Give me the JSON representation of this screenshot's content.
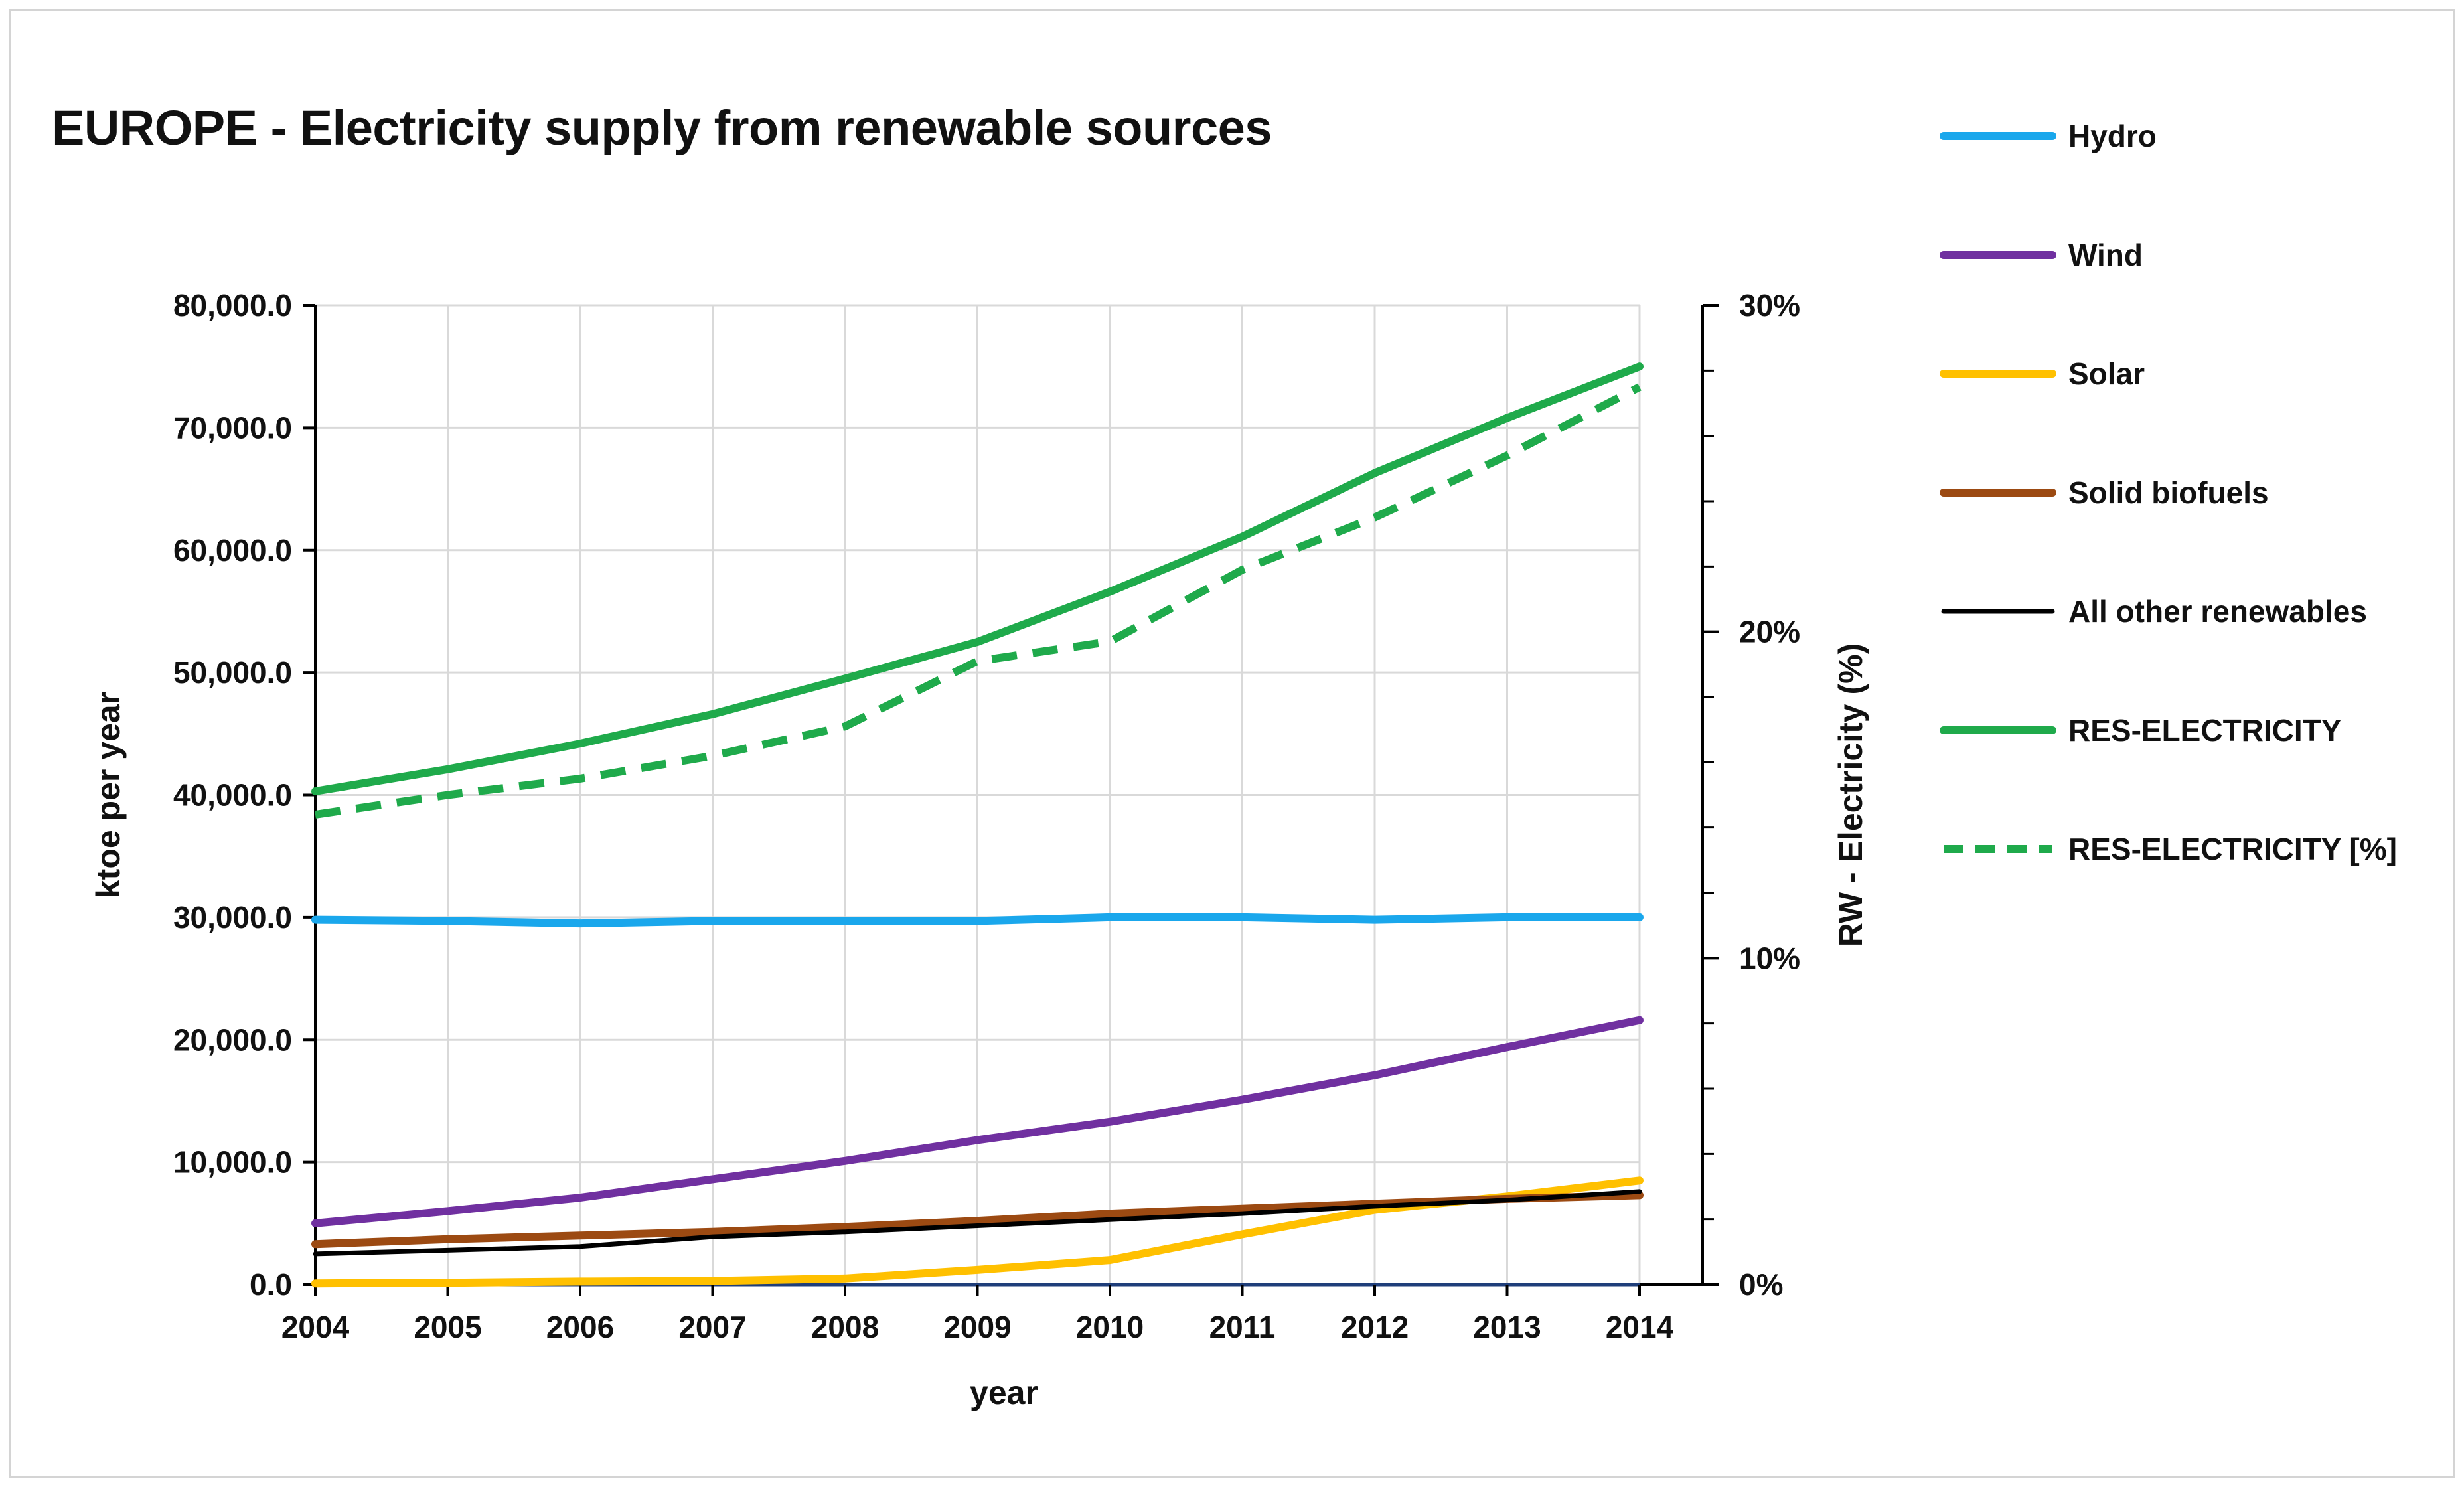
{
  "chart_data": {
    "type": "line",
    "title": "EUROPE - Electricity supply from renewable sources",
    "xlabel": "year",
    "ylabel": "ktoe per year",
    "y2label": "RW - Electricity (%)",
    "x": [
      2004,
      2005,
      2006,
      2007,
      2008,
      2009,
      2010,
      2011,
      2012,
      2013,
      2014
    ],
    "ylim": [
      0,
      80000
    ],
    "y2lim": [
      0,
      30
    ],
    "yticks": [
      "0.0",
      "10,000.0",
      "20,000.0",
      "30,000.0",
      "40,000.0",
      "50,000.0",
      "60,000.0",
      "70,000.0",
      "80,000.0"
    ],
    "y2ticks": [
      "0%",
      "10%",
      "20%",
      "30%"
    ],
    "grid": true,
    "legend_position": "right",
    "series": [
      {
        "name": "Hydro",
        "axis": "left",
        "color": "#1aa7ec",
        "dash": false,
        "values": [
          29800,
          29700,
          29500,
          29700,
          29700,
          29700,
          30000,
          30000,
          29800,
          30000,
          30000
        ]
      },
      {
        "name": "Wind",
        "axis": "left",
        "color": "#7030a0",
        "dash": false,
        "values": [
          5000,
          6000,
          7100,
          8600,
          10100,
          11800,
          13300,
          15100,
          17100,
          19400,
          21600
        ]
      },
      {
        "name": "Solar",
        "axis": "left",
        "color": "#ffc000",
        "dash": false,
        "values": [
          100,
          150,
          250,
          300,
          500,
          1200,
          2000,
          4100,
          6100,
          7200,
          8500
        ]
      },
      {
        "name": "Solid biofuels",
        "axis": "left",
        "color": "#9c4a12",
        "dash": false,
        "values": [
          3300,
          3700,
          4000,
          4300,
          4700,
          5200,
          5800,
          6200,
          6600,
          7000,
          7300
        ]
      },
      {
        "name": "All other renewables",
        "axis": "left",
        "color": "#000000",
        "dash": false,
        "values": [
          2500,
          2800,
          3100,
          3900,
          4300,
          4800,
          5300,
          5800,
          6400,
          6900,
          7600
        ]
      },
      {
        "name": "RES-ELECTRICITY",
        "axis": "left",
        "color": "#1faa4b",
        "dash": false,
        "values": [
          40300,
          42100,
          44200,
          46600,
          49500,
          52500,
          56600,
          61100,
          66300,
          70800,
          75000
        ]
      },
      {
        "name": "RES-ELECTRICITY [%]",
        "axis": "right",
        "color": "#1faa4b",
        "dash": true,
        "values": [
          14.4,
          15.0,
          15.5,
          16.2,
          17.1,
          19.1,
          19.7,
          21.9,
          23.5,
          25.4,
          27.5
        ]
      }
    ]
  }
}
